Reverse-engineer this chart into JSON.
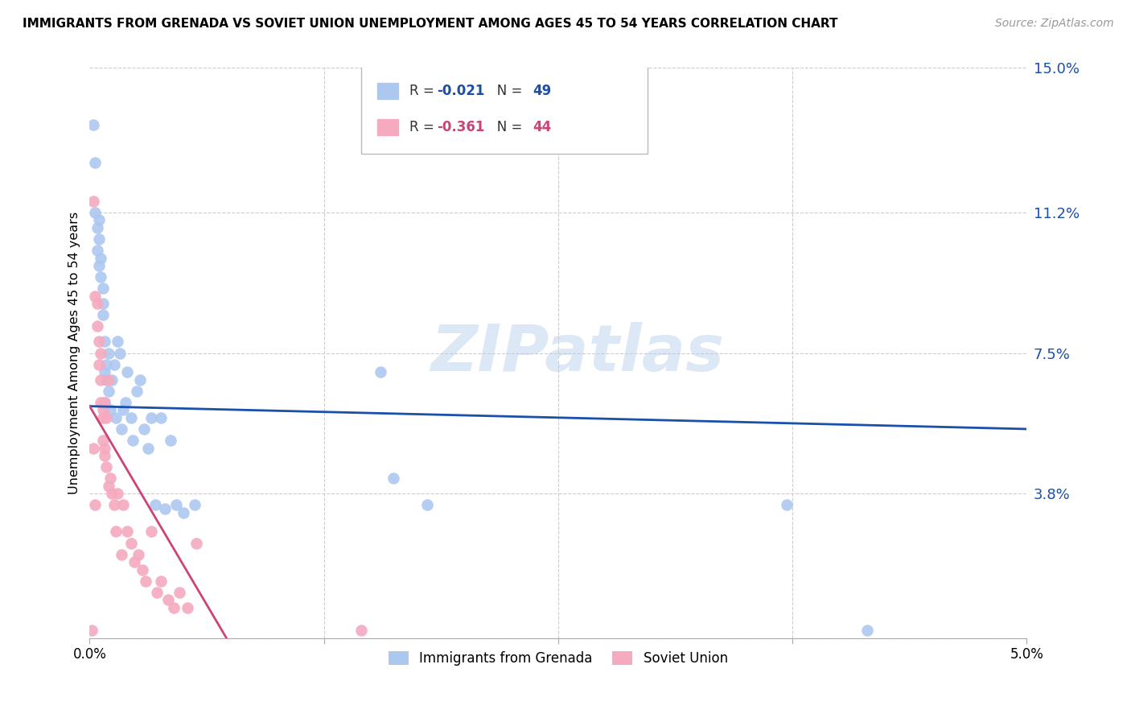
{
  "title": "IMMIGRANTS FROM GRENADA VS SOVIET UNION UNEMPLOYMENT AMONG AGES 45 TO 54 YEARS CORRELATION CHART",
  "source": "Source: ZipAtlas.com",
  "ylabel": "Unemployment Among Ages 45 to 54 years",
  "ytick_values": [
    0.0,
    3.8,
    7.5,
    11.2,
    15.0
  ],
  "xmin": 0.0,
  "xmax": 5.0,
  "ymin": 0.0,
  "ymax": 15.0,
  "legend_blue_R": "-0.021",
  "legend_blue_N": "49",
  "legend_pink_R": "-0.361",
  "legend_pink_N": "44",
  "legend_label_blue": "Immigrants from Grenada",
  "legend_label_pink": "Soviet Union",
  "blue_color": "#adc8f0",
  "pink_color": "#f5aabf",
  "trendline_blue_color": "#1a4faa",
  "trendline_pink_color": "#cc4477",
  "blue_trendline_x": [
    0.0,
    5.0
  ],
  "blue_trendline_y": [
    6.1,
    5.5
  ],
  "pink_trendline_x": [
    0.0,
    0.73
  ],
  "pink_trendline_y": [
    6.1,
    0.0
  ],
  "blue_x": [
    0.02,
    0.03,
    0.03,
    0.04,
    0.04,
    0.05,
    0.05,
    0.05,
    0.06,
    0.06,
    0.07,
    0.07,
    0.07,
    0.08,
    0.08,
    0.08,
    0.09,
    0.09,
    0.1,
    0.1,
    0.11,
    0.12,
    0.13,
    0.14,
    0.15,
    0.16,
    0.17,
    0.18,
    0.19,
    0.2,
    0.22,
    0.23,
    0.25,
    0.27,
    0.29,
    0.31,
    0.33,
    0.35,
    0.38,
    0.4,
    0.43,
    0.46,
    0.5,
    0.56,
    1.55,
    1.62,
    1.8,
    3.72,
    4.15
  ],
  "blue_y": [
    13.5,
    12.5,
    11.2,
    10.8,
    10.2,
    9.8,
    10.5,
    11.0,
    10.0,
    9.5,
    8.8,
    9.2,
    8.5,
    7.8,
    6.2,
    7.0,
    7.2,
    6.8,
    7.5,
    6.5,
    6.0,
    6.8,
    7.2,
    5.8,
    7.8,
    7.5,
    5.5,
    6.0,
    6.2,
    7.0,
    5.8,
    5.2,
    6.5,
    6.8,
    5.5,
    5.0,
    5.8,
    3.5,
    5.8,
    3.4,
    5.2,
    3.5,
    3.3,
    3.5,
    7.0,
    4.2,
    3.5,
    3.5,
    0.2
  ],
  "pink_x": [
    0.01,
    0.02,
    0.02,
    0.03,
    0.03,
    0.04,
    0.04,
    0.05,
    0.05,
    0.06,
    0.06,
    0.06,
    0.07,
    0.07,
    0.07,
    0.08,
    0.08,
    0.08,
    0.09,
    0.09,
    0.1,
    0.1,
    0.11,
    0.12,
    0.13,
    0.14,
    0.15,
    0.17,
    0.18,
    0.2,
    0.22,
    0.24,
    0.26,
    0.28,
    0.3,
    0.33,
    0.36,
    0.38,
    0.42,
    0.45,
    0.48,
    0.52,
    0.57,
    1.45
  ],
  "pink_y": [
    0.2,
    11.5,
    5.0,
    9.0,
    3.5,
    8.8,
    8.2,
    7.8,
    7.2,
    6.8,
    6.2,
    7.5,
    5.8,
    6.0,
    5.2,
    5.0,
    4.8,
    6.2,
    4.5,
    5.8,
    6.8,
    4.0,
    4.2,
    3.8,
    3.5,
    2.8,
    3.8,
    2.2,
    3.5,
    2.8,
    2.5,
    2.0,
    2.2,
    1.8,
    1.5,
    2.8,
    1.2,
    1.5,
    1.0,
    0.8,
    1.2,
    0.8,
    2.5,
    0.2
  ]
}
